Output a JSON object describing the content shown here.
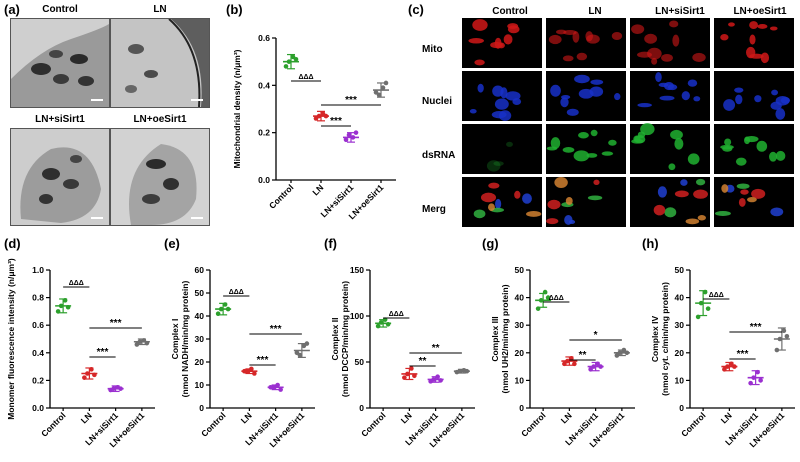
{
  "panel_letters": [
    "(a)",
    "(b)",
    "(c)",
    "(d)",
    "(e)",
    "(f)",
    "(g)",
    "(h)"
  ],
  "em": {
    "labels": [
      "Control",
      "LN",
      "LN+siSirt1",
      "LN+oeSirt1"
    ]
  },
  "fluor": {
    "columns": [
      "Control",
      "LN",
      "LN+siSirt1",
      "LN+oeSirt1"
    ],
    "rows": [
      "Mito",
      "Nuclei",
      "dsRNA",
      "Merg"
    ],
    "colors": {
      "Mito": "#d01818",
      "Nuclei": "#1830c8",
      "dsRNA": "#20b030",
      "Merg": "#c05828"
    }
  },
  "group_colors": [
    "#2ca02c",
    "#d62728",
    "#9b30d0",
    "#6f6f6f"
  ],
  "chart_data": [
    {
      "id": "b",
      "type": "scatter",
      "categories": [
        "Control",
        "LN",
        "LN+siSirt1",
        "LN+oeSirt1"
      ],
      "ylabel": "Mitochondrial density (n/μm³)",
      "ylim": [
        0,
        0.6
      ],
      "yticks": [
        0.0,
        0.2,
        0.4,
        0.6
      ],
      "yticklabels": [
        "0.0",
        "0.2",
        "0.4",
        "0.6"
      ],
      "means": [
        0.5,
        0.27,
        0.18,
        0.38
      ],
      "sd": [
        0.03,
        0.02,
        0.02,
        0.03
      ],
      "points": [
        [
          0.48,
          0.5,
          0.52,
          0.51
        ],
        [
          0.26,
          0.27,
          0.28,
          0.27
        ],
        [
          0.17,
          0.19,
          0.18,
          0.2
        ],
        [
          0.37,
          0.36,
          0.39,
          0.41
        ]
      ],
      "annotations": [
        {
          "from": 0,
          "to": 1,
          "text": "ΔΔΔ"
        },
        {
          "from": 1,
          "to": 3,
          "text": "***"
        },
        {
          "from": 1,
          "to": 2,
          "text": "***"
        }
      ]
    },
    {
      "id": "d",
      "type": "scatter",
      "categories": [
        "Control",
        "LN",
        "LN+siSirt1",
        "LN+oeSirt1"
      ],
      "ylabel": "Monomer fluorescence intensity (n/μm³)",
      "ylim": [
        0,
        1.0
      ],
      "yticks": [
        0.0,
        0.2,
        0.4,
        0.6,
        0.8,
        1.0
      ],
      "yticklabels": [
        "0.0",
        "0.2",
        "0.4",
        "0.6",
        "0.8",
        "1.0"
      ],
      "means": [
        0.74,
        0.25,
        0.14,
        0.48
      ],
      "sd": [
        0.05,
        0.04,
        0.02,
        0.02
      ],
      "points": [
        [
          0.7,
          0.74,
          0.78,
          0.73
        ],
        [
          0.22,
          0.25,
          0.28,
          0.24
        ],
        [
          0.13,
          0.14,
          0.15,
          0.14
        ],
        [
          0.46,
          0.48,
          0.49,
          0.47
        ]
      ],
      "annotations": [
        {
          "from": 0,
          "to": 1,
          "text": "ΔΔΔ"
        },
        {
          "from": 1,
          "to": 3,
          "text": "***"
        },
        {
          "from": 1,
          "to": 2,
          "text": "***"
        }
      ]
    },
    {
      "id": "e",
      "type": "scatter",
      "categories": [
        "Control",
        "LN",
        "LN+siSirt1",
        "LN+oeSirt1"
      ],
      "ylabel_line1": "Complex I",
      "ylabel_line2": "(nmol NADH/min/mg protein)",
      "ylim": [
        0,
        60
      ],
      "yticks": [
        0,
        10,
        20,
        30,
        40,
        50,
        60
      ],
      "yticklabels": [
        "0",
        "10",
        "20",
        "30",
        "40",
        "50",
        "60"
      ],
      "means": [
        43,
        16,
        9,
        25
      ],
      "sd": [
        2.5,
        1.0,
        1.0,
        3.0
      ],
      "points": [
        [
          41,
          43,
          45,
          43
        ],
        [
          16,
          16,
          17,
          15
        ],
        [
          9,
          9,
          10,
          8
        ],
        [
          24,
          23,
          27,
          28
        ]
      ],
      "annotations": [
        {
          "from": 0,
          "to": 1,
          "text": "ΔΔΔ"
        },
        {
          "from": 1,
          "to": 3,
          "text": "***"
        },
        {
          "from": 1,
          "to": 2,
          "text": "***"
        }
      ]
    },
    {
      "id": "f",
      "type": "scatter",
      "categories": [
        "Control",
        "LN",
        "LN+siSirt1",
        "LN+oeSirt1"
      ],
      "ylabel_line1": "Complex II",
      "ylabel_line2": "(nmol DCCP/min/mg protein)",
      "ylim": [
        0,
        150
      ],
      "yticks": [
        0,
        50,
        100,
        150
      ],
      "yticklabels": [
        "0",
        "50",
        "100",
        "150"
      ],
      "means": [
        92,
        37,
        31,
        40
      ],
      "sd": [
        4,
        6,
        3,
        2
      ],
      "points": [
        [
          89,
          93,
          96,
          91
        ],
        [
          33,
          37,
          43,
          35
        ],
        [
          29,
          31,
          34,
          30
        ],
        [
          39,
          40,
          41,
          40
        ]
      ],
      "annotations": [
        {
          "from": 0,
          "to": 1,
          "text": "ΔΔΔ"
        },
        {
          "from": 1,
          "to": 3,
          "text": "**"
        },
        {
          "from": 1,
          "to": 2,
          "text": "**"
        }
      ]
    },
    {
      "id": "g",
      "type": "scatter",
      "categories": [
        "Control",
        "LN",
        "LN+siSirt1",
        "LN+oeSirt1"
      ],
      "ylabel_line1": "Complex III",
      "ylabel_line2": "(nmol UH2/min/mg protein)",
      "ylim": [
        0,
        50
      ],
      "yticks": [
        0,
        10,
        20,
        30,
        40,
        50
      ],
      "yticklabels": [
        "0",
        "10",
        "20",
        "30",
        "40",
        "50"
      ],
      "means": [
        39,
        17,
        15,
        20
      ],
      "sd": [
        2.5,
        1.5,
        1.5,
        1.0
      ],
      "points": [
        [
          36,
          39,
          42,
          40
        ],
        [
          16,
          17,
          18,
          16
        ],
        [
          14,
          15,
          16,
          15
        ],
        [
          19,
          20,
          21,
          20
        ]
      ],
      "annotations": [
        {
          "from": 0,
          "to": 1,
          "text": "ΔΔΔ"
        },
        {
          "from": 1,
          "to": 3,
          "text": "*"
        },
        {
          "from": 1,
          "to": 2,
          "text": "**"
        }
      ]
    },
    {
      "id": "h",
      "type": "scatter",
      "categories": [
        "Control",
        "LN",
        "LN+siSirt1",
        "LN+oeSirt1"
      ],
      "ylabel_line1": "Complex IV",
      "ylabel_line2": "(nmol cyt. c/min/mg protein)",
      "ylim": [
        0,
        50
      ],
      "yticks": [
        0,
        10,
        20,
        30,
        40,
        50
      ],
      "yticklabels": [
        "0",
        "10",
        "20",
        "30",
        "40",
        "50"
      ],
      "means": [
        38,
        15,
        11,
        25
      ],
      "sd": [
        4.5,
        1.5,
        2.5,
        4.0
      ],
      "points": [
        [
          33,
          38,
          42,
          36
        ],
        [
          14,
          15,
          16,
          15
        ],
        [
          9,
          11,
          13,
          10
        ],
        [
          21,
          25,
          28,
          26
        ]
      ],
      "annotations": [
        {
          "from": 0,
          "to": 1,
          "text": "ΔΔΔ"
        },
        {
          "from": 1,
          "to": 3,
          "text": "***"
        },
        {
          "from": 1,
          "to": 2,
          "text": "***"
        }
      ]
    }
  ]
}
